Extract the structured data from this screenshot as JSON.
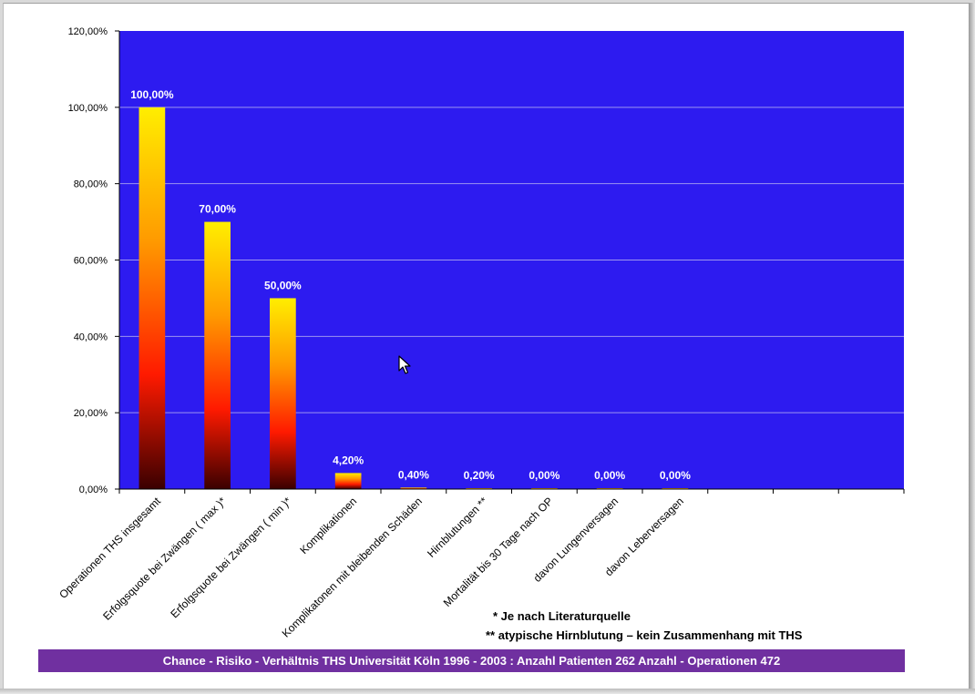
{
  "colors": {
    "plot_background": "#2d1bf0",
    "gridline": "#9c94f0",
    "bar_top": "#ffee00",
    "bar_mid_orange": "#ff9a00",
    "bar_red": "#ff1a00",
    "bar_bottom": "#3a0000",
    "footer_background": "#7030a0",
    "data_label": "#ffffff"
  },
  "chart_data": {
    "type": "bar",
    "categories": [
      "Operationen THS insgesamt",
      "Erfolgsquote bei Zwängen ( max )*",
      "Erfolgsquote bei Zwängen ( min )*",
      "Komplikationen",
      "Komplikatonen mit bleibenden Schäden",
      "Hirnblutungen **",
      "Mortalität bis 30 Tage nach OP",
      "davon Lungenversagen",
      "davon Leberversagen",
      "",
      "",
      ""
    ],
    "values": [
      100,
      70,
      50,
      4.2,
      0.4,
      0.2,
      0,
      0,
      0,
      null,
      null,
      null
    ],
    "data_labels": [
      "100,00%",
      "70,00%",
      "50,00%",
      "4,20%",
      "0,40%",
      "0,20%",
      "0,00%",
      "0,00%",
      "0,00%",
      "",
      "",
      ""
    ],
    "ylim": [
      0,
      120
    ],
    "yticks": [
      0,
      20,
      40,
      60,
      80,
      100,
      120
    ],
    "ytick_labels": [
      "0,00%",
      "20,00%",
      "40,00%",
      "60,00%",
      "80,00%",
      "100,00%",
      "120,00%"
    ],
    "grid": true,
    "legend": "none",
    "title": "",
    "xlabel": "",
    "ylabel": ""
  },
  "notes": {
    "footnote_1": "* Je nach Literaturquelle",
    "footnote_2": "** atypische Hirnblutung – kein Zusammenhang mit THS"
  },
  "footer": {
    "text": "Chance - Risiko - Verhältnis  THS Universität Köln 1996 - 2003  : Anzahl Patienten 262 Anzahl -  Operationen 472"
  },
  "icons": {
    "cursor": "mouse-pointer-icon"
  }
}
